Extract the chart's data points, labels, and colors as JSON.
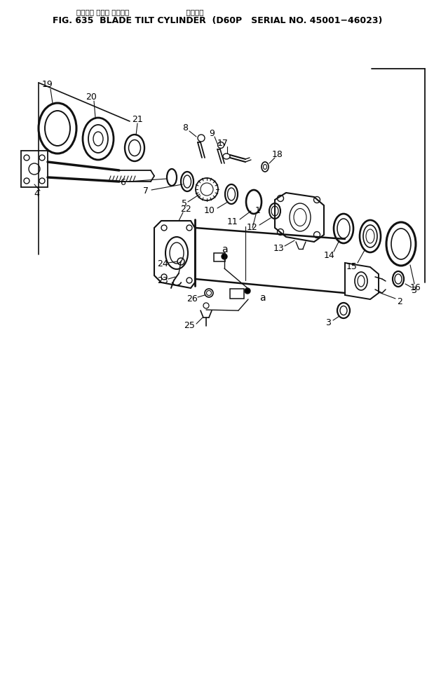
{
  "title_jp": "ブレード チルト シリンダ                         適用号機",
  "title_en": "FIG. 635  BLADE TILT CYLINDER  (D60P   SERIAL NO. 45001−46023)",
  "bg_color": "#ffffff",
  "lc": "#111111",
  "tc": "#000000",
  "fig_width": 6.19,
  "fig_height": 9.73,
  "dpi": 100
}
